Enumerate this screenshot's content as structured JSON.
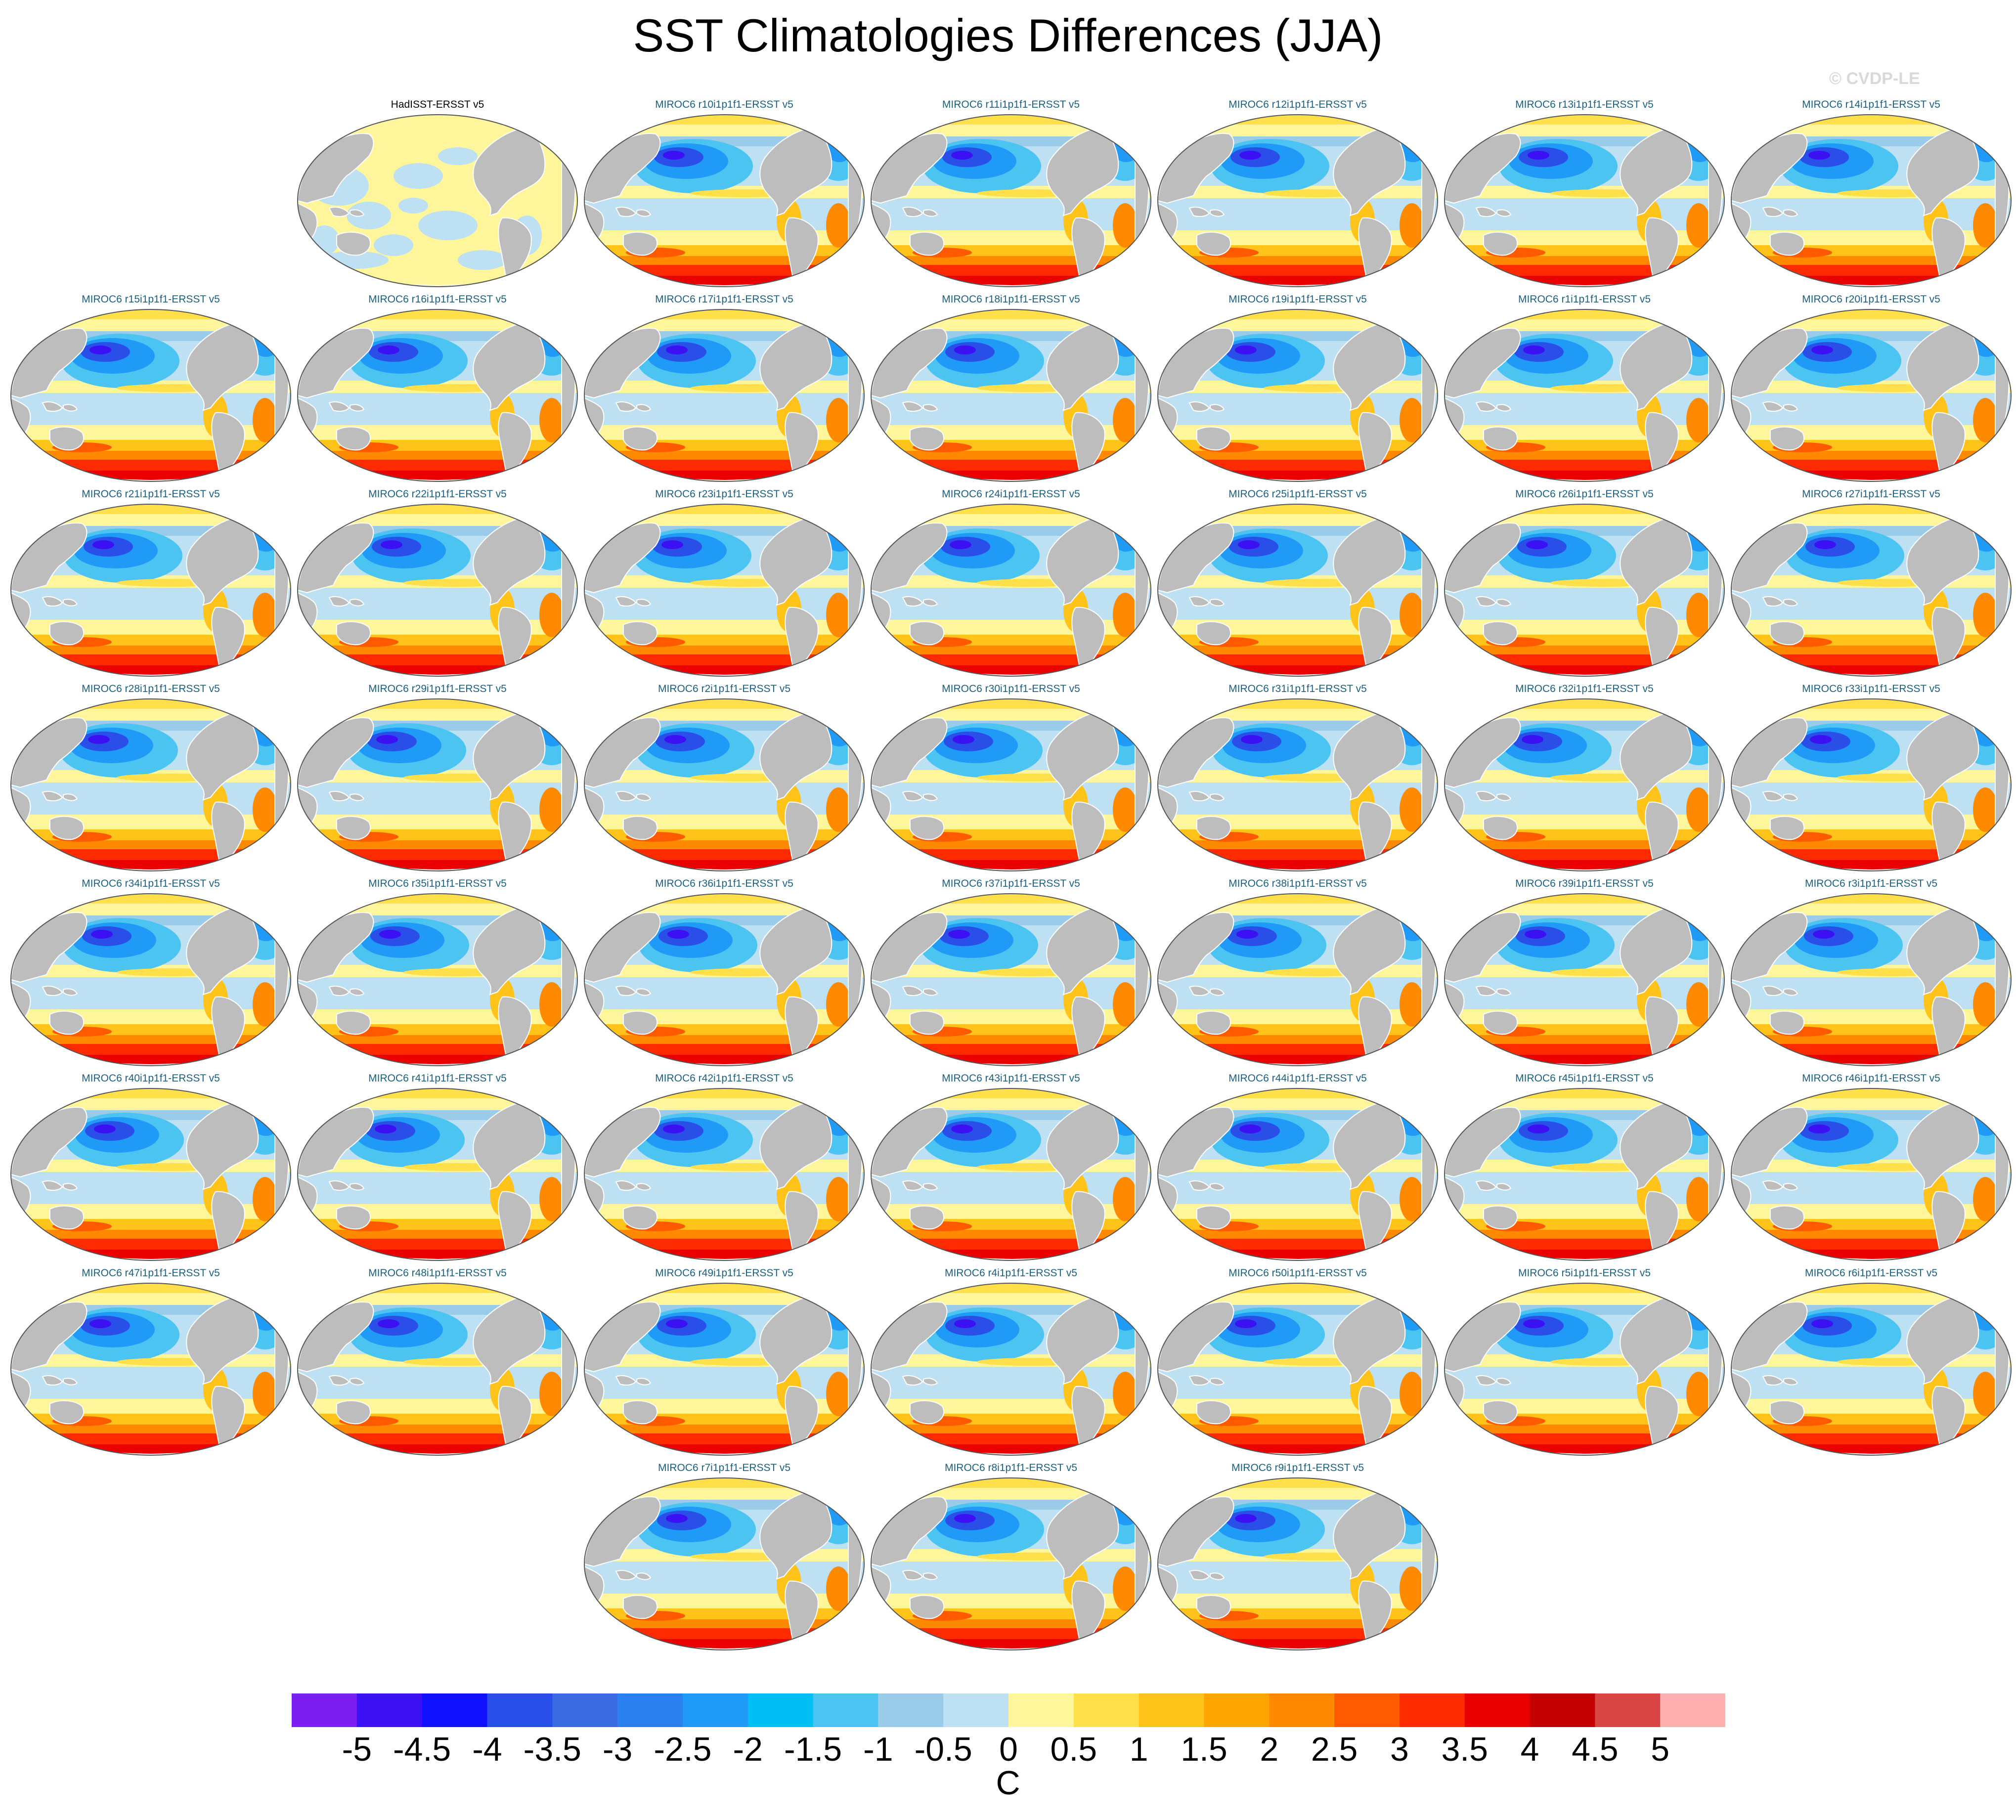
{
  "title": "SST Climatologies Differences (JJA)",
  "watermark": "© CVDP-LE",
  "chart_data": {
    "type": "heatmap",
    "description_type": "global map panels (Robinson-like projection), SST difference fields",
    "units": "C",
    "colorbar": {
      "ticks": [
        "-5",
        "-4.5",
        "-4",
        "-3.5",
        "-3",
        "-2.5",
        "-2",
        "-1.5",
        "-1",
        "-0.5",
        "0",
        "0.5",
        "1",
        "1.5",
        "2",
        "2.5",
        "3",
        "3.5",
        "4",
        "4.5",
        "5"
      ],
      "colors": [
        "#7a1ff0",
        "#3b10f3",
        "#1010ff",
        "#2a4fe8",
        "#3a6be0",
        "#2b80f0",
        "#1f9bf7",
        "#00bff5",
        "#4cc4f2",
        "#9acbe9",
        "#bde0f3",
        "#fff59a",
        "#ffe04a",
        "#ffc31a",
        "#ffa500",
        "#ff8a00",
        "#ff5a00",
        "#ff2b00",
        "#ea0000",
        "#c40000",
        "#d94545",
        "#ffb0b0"
      ]
    },
    "panels": [
      {
        "label": "HadISST-ERSST v5",
        "kind": "obs"
      },
      {
        "label": "MIROC6 r10i1p1f1-ERSST v5",
        "kind": "model"
      },
      {
        "label": "MIROC6 r11i1p1f1-ERSST v5",
        "kind": "model"
      },
      {
        "label": "MIROC6 r12i1p1f1-ERSST v5",
        "kind": "model"
      },
      {
        "label": "MIROC6 r13i1p1f1-ERSST v5",
        "kind": "model"
      },
      {
        "label": "MIROC6 r14i1p1f1-ERSST v5",
        "kind": "model"
      },
      {
        "label": "MIROC6 r15i1p1f1-ERSST v5",
        "kind": "model"
      },
      {
        "label": "MIROC6 r16i1p1f1-ERSST v5",
        "kind": "model"
      },
      {
        "label": "MIROC6 r17i1p1f1-ERSST v5",
        "kind": "model"
      },
      {
        "label": "MIROC6 r18i1p1f1-ERSST v5",
        "kind": "model"
      },
      {
        "label": "MIROC6 r19i1p1f1-ERSST v5",
        "kind": "model"
      },
      {
        "label": "MIROC6 r1i1p1f1-ERSST v5",
        "kind": "model"
      },
      {
        "label": "MIROC6 r20i1p1f1-ERSST v5",
        "kind": "model"
      },
      {
        "label": "MIROC6 r21i1p1f1-ERSST v5",
        "kind": "model"
      },
      {
        "label": "MIROC6 r22i1p1f1-ERSST v5",
        "kind": "model"
      },
      {
        "label": "MIROC6 r23i1p1f1-ERSST v5",
        "kind": "model"
      },
      {
        "label": "MIROC6 r24i1p1f1-ERSST v5",
        "kind": "model"
      },
      {
        "label": "MIROC6 r25i1p1f1-ERSST v5",
        "kind": "model"
      },
      {
        "label": "MIROC6 r26i1p1f1-ERSST v5",
        "kind": "model"
      },
      {
        "label": "MIROC6 r27i1p1f1-ERSST v5",
        "kind": "model"
      },
      {
        "label": "MIROC6 r28i1p1f1-ERSST v5",
        "kind": "model"
      },
      {
        "label": "MIROC6 r29i1p1f1-ERSST v5",
        "kind": "model"
      },
      {
        "label": "MIROC6 r2i1p1f1-ERSST v5",
        "kind": "model"
      },
      {
        "label": "MIROC6 r30i1p1f1-ERSST v5",
        "kind": "model"
      },
      {
        "label": "MIROC6 r31i1p1f1-ERSST v5",
        "kind": "model"
      },
      {
        "label": "MIROC6 r32i1p1f1-ERSST v5",
        "kind": "model"
      },
      {
        "label": "MIROC6 r33i1p1f1-ERSST v5",
        "kind": "model"
      },
      {
        "label": "MIROC6 r34i1p1f1-ERSST v5",
        "kind": "model"
      },
      {
        "label": "MIROC6 r35i1p1f1-ERSST v5",
        "kind": "model"
      },
      {
        "label": "MIROC6 r36i1p1f1-ERSST v5",
        "kind": "model"
      },
      {
        "label": "MIROC6 r37i1p1f1-ERSST v5",
        "kind": "model"
      },
      {
        "label": "MIROC6 r38i1p1f1-ERSST v5",
        "kind": "model"
      },
      {
        "label": "MIROC6 r39i1p1f1-ERSST v5",
        "kind": "model"
      },
      {
        "label": "MIROC6 r3i1p1f1-ERSST v5",
        "kind": "model"
      },
      {
        "label": "MIROC6 r40i1p1f1-ERSST v5",
        "kind": "model"
      },
      {
        "label": "MIROC6 r41i1p1f1-ERSST v5",
        "kind": "model"
      },
      {
        "label": "MIROC6 r42i1p1f1-ERSST v5",
        "kind": "model"
      },
      {
        "label": "MIROC6 r43i1p1f1-ERSST v5",
        "kind": "model"
      },
      {
        "label": "MIROC6 r44i1p1f1-ERSST v5",
        "kind": "model"
      },
      {
        "label": "MIROC6 r45i1p1f1-ERSST v5",
        "kind": "model"
      },
      {
        "label": "MIROC6 r46i1p1f1-ERSST v5",
        "kind": "model"
      },
      {
        "label": "MIROC6 r47i1p1f1-ERSST v5",
        "kind": "model"
      },
      {
        "label": "MIROC6 r48i1p1f1-ERSST v5",
        "kind": "model"
      },
      {
        "label": "MIROC6 r49i1p1f1-ERSST v5",
        "kind": "model"
      },
      {
        "label": "MIROC6 r4i1p1f1-ERSST v5",
        "kind": "model"
      },
      {
        "label": "MIROC6 r50i1p1f1-ERSST v5",
        "kind": "model"
      },
      {
        "label": "MIROC6 r5i1p1f1-ERSST v5",
        "kind": "model"
      },
      {
        "label": "MIROC6 r6i1p1f1-ERSST v5",
        "kind": "model"
      },
      {
        "label": "MIROC6 r7i1p1f1-ERSST v5",
        "kind": "model"
      },
      {
        "label": "MIROC6 r8i1p1f1-ERSST v5",
        "kind": "model"
      },
      {
        "label": "MIROC6 r9i1p1f1-ERSST v5",
        "kind": "model"
      }
    ]
  }
}
